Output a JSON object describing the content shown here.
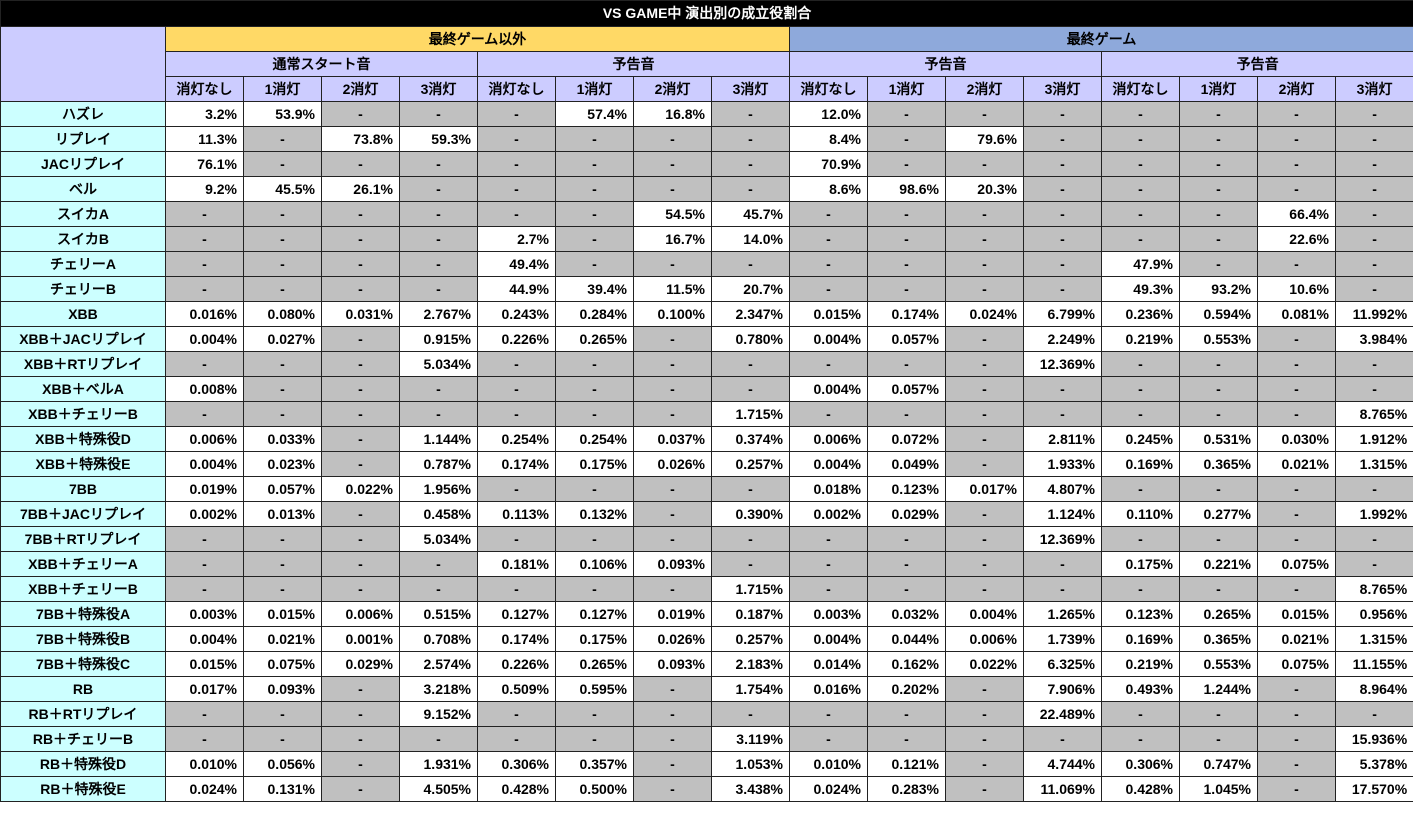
{
  "title": "VS GAME中 演出別の成立役割合",
  "colors": {
    "title_bg": "#000000",
    "title_fg": "#ffffff",
    "group_a_bg": "#ffd966",
    "group_b_bg": "#8ea9db",
    "subheader_bg": "#ccccff",
    "rowlabel_bg": "#ccffff",
    "white_cell": "#ffffff",
    "gray_cell": "#c0c0c0"
  },
  "groups": [
    {
      "label": "最終ゲーム以外",
      "color": "#ffd966"
    },
    {
      "label": "最終ゲーム",
      "color": "#8ea9db"
    }
  ],
  "subgroups": [
    "通常スタート音",
    "予告音",
    "予告音",
    "予告音"
  ],
  "columns": [
    "消灯なし",
    "1消灯",
    "2消灯",
    "3消灯",
    "消灯なし",
    "1消灯",
    "2消灯",
    "3消灯",
    "消灯なし",
    "1消灯",
    "2消灯",
    "3消灯",
    "消灯なし",
    "1消灯",
    "2消灯",
    "3消灯"
  ],
  "rows": [
    {
      "label": "ハズレ",
      "cells": [
        "3.2%",
        "53.9%",
        "-",
        "-",
        "-",
        "57.4%",
        "16.8%",
        "-",
        "12.0%",
        "-",
        "-",
        "-",
        "-",
        "-",
        "-",
        "-"
      ]
    },
    {
      "label": "リプレイ",
      "cells": [
        "11.3%",
        "-",
        "73.8%",
        "59.3%",
        "-",
        "-",
        "-",
        "-",
        "8.4%",
        "-",
        "79.6%",
        "-",
        "-",
        "-",
        "-",
        "-"
      ]
    },
    {
      "label": "JACリプレイ",
      "cells": [
        "76.1%",
        "-",
        "-",
        "-",
        "-",
        "-",
        "-",
        "-",
        "70.9%",
        "-",
        "-",
        "-",
        "-",
        "-",
        "-",
        "-"
      ]
    },
    {
      "label": "ベル",
      "cells": [
        "9.2%",
        "45.5%",
        "26.1%",
        "-",
        "-",
        "-",
        "-",
        "-",
        "8.6%",
        "98.6%",
        "20.3%",
        "-",
        "-",
        "-",
        "-",
        "-"
      ]
    },
    {
      "label": "スイカA",
      "cells": [
        "-",
        "-",
        "-",
        "-",
        "-",
        "-",
        "54.5%",
        "45.7%",
        "-",
        "-",
        "-",
        "-",
        "-",
        "-",
        "66.4%",
        "-"
      ]
    },
    {
      "label": "スイカB",
      "cells": [
        "-",
        "-",
        "-",
        "-",
        "2.7%",
        "-",
        "16.7%",
        "14.0%",
        "-",
        "-",
        "-",
        "-",
        "-",
        "-",
        "22.6%",
        "-"
      ]
    },
    {
      "label": "チェリーA",
      "cells": [
        "-",
        "-",
        "-",
        "-",
        "49.4%",
        "-",
        "-",
        "-",
        "-",
        "-",
        "-",
        "-",
        "47.9%",
        "-",
        "-",
        "-"
      ]
    },
    {
      "label": "チェリーB",
      "cells": [
        "-",
        "-",
        "-",
        "-",
        "44.9%",
        "39.4%",
        "11.5%",
        "20.7%",
        "-",
        "-",
        "-",
        "-",
        "49.3%",
        "93.2%",
        "10.6%",
        "-"
      ]
    },
    {
      "label": "XBB",
      "cells": [
        "0.016%",
        "0.080%",
        "0.031%",
        "2.767%",
        "0.243%",
        "0.284%",
        "0.100%",
        "2.347%",
        "0.015%",
        "0.174%",
        "0.024%",
        "6.799%",
        "0.236%",
        "0.594%",
        "0.081%",
        "11.992%"
      ]
    },
    {
      "label": "XBB＋JACリプレイ",
      "cells": [
        "0.004%",
        "0.027%",
        "-",
        "0.915%",
        "0.226%",
        "0.265%",
        "-",
        "0.780%",
        "0.004%",
        "0.057%",
        "-",
        "2.249%",
        "0.219%",
        "0.553%",
        "-",
        "3.984%"
      ]
    },
    {
      "label": "XBB＋RTリプレイ",
      "cells": [
        "-",
        "-",
        "-",
        "5.034%",
        "-",
        "-",
        "-",
        "-",
        "-",
        "-",
        "-",
        "12.369%",
        "-",
        "-",
        "-",
        "-"
      ]
    },
    {
      "label": "XBB＋ベルA",
      "cells": [
        "0.008%",
        "-",
        "-",
        "-",
        "-",
        "-",
        "-",
        "-",
        "0.004%",
        "0.057%",
        "-",
        "-",
        "-",
        "-",
        "-",
        "-"
      ]
    },
    {
      "label": "XBB＋チェリーB",
      "cells": [
        "-",
        "-",
        "-",
        "-",
        "-",
        "-",
        "-",
        "1.715%",
        "-",
        "-",
        "-",
        "-",
        "-",
        "-",
        "-",
        "8.765%"
      ]
    },
    {
      "label": "XBB＋特殊役D",
      "cells": [
        "0.006%",
        "0.033%",
        "-",
        "1.144%",
        "0.254%",
        "0.254%",
        "0.037%",
        "0.374%",
        "0.006%",
        "0.072%",
        "-",
        "2.811%",
        "0.245%",
        "0.531%",
        "0.030%",
        "1.912%"
      ]
    },
    {
      "label": "XBB＋特殊役E",
      "cells": [
        "0.004%",
        "0.023%",
        "-",
        "0.787%",
        "0.174%",
        "0.175%",
        "0.026%",
        "0.257%",
        "0.004%",
        "0.049%",
        "-",
        "1.933%",
        "0.169%",
        "0.365%",
        "0.021%",
        "1.315%"
      ]
    },
    {
      "label": "7BB",
      "cells": [
        "0.019%",
        "0.057%",
        "0.022%",
        "1.956%",
        "-",
        "-",
        "-",
        "-",
        "0.018%",
        "0.123%",
        "0.017%",
        "4.807%",
        "-",
        "-",
        "-",
        "-"
      ]
    },
    {
      "label": "7BB＋JACリプレイ",
      "cells": [
        "0.002%",
        "0.013%",
        "-",
        "0.458%",
        "0.113%",
        "0.132%",
        "-",
        "0.390%",
        "0.002%",
        "0.029%",
        "-",
        "1.124%",
        "0.110%",
        "0.277%",
        "-",
        "1.992%"
      ]
    },
    {
      "label": "7BB＋RTリプレイ",
      "cells": [
        "-",
        "-",
        "-",
        "5.034%",
        "-",
        "-",
        "-",
        "-",
        "-",
        "-",
        "-",
        "12.369%",
        "-",
        "-",
        "-",
        "-"
      ]
    },
    {
      "label": "XBB＋チェリーA",
      "cells": [
        "-",
        "-",
        "-",
        "-",
        "0.181%",
        "0.106%",
        "0.093%",
        "-",
        "-",
        "-",
        "-",
        "-",
        "0.175%",
        "0.221%",
        "0.075%",
        "-"
      ]
    },
    {
      "label": "XBB＋チェリーB",
      "cells": [
        "-",
        "-",
        "-",
        "-",
        "-",
        "-",
        "-",
        "1.715%",
        "-",
        "-",
        "-",
        "-",
        "-",
        "-",
        "-",
        "8.765%"
      ]
    },
    {
      "label": "7BB＋特殊役A",
      "cells": [
        "0.003%",
        "0.015%",
        "0.006%",
        "0.515%",
        "0.127%",
        "0.127%",
        "0.019%",
        "0.187%",
        "0.003%",
        "0.032%",
        "0.004%",
        "1.265%",
        "0.123%",
        "0.265%",
        "0.015%",
        "0.956%"
      ]
    },
    {
      "label": "7BB＋特殊役B",
      "cells": [
        "0.004%",
        "0.021%",
        "0.001%",
        "0.708%",
        "0.174%",
        "0.175%",
        "0.026%",
        "0.257%",
        "0.004%",
        "0.044%",
        "0.006%",
        "1.739%",
        "0.169%",
        "0.365%",
        "0.021%",
        "1.315%"
      ]
    },
    {
      "label": "7BB＋特殊役C",
      "cells": [
        "0.015%",
        "0.075%",
        "0.029%",
        "2.574%",
        "0.226%",
        "0.265%",
        "0.093%",
        "2.183%",
        "0.014%",
        "0.162%",
        "0.022%",
        "6.325%",
        "0.219%",
        "0.553%",
        "0.075%",
        "11.155%"
      ]
    },
    {
      "label": "RB",
      "cells": [
        "0.017%",
        "0.093%",
        "-",
        "3.218%",
        "0.509%",
        "0.595%",
        "-",
        "1.754%",
        "0.016%",
        "0.202%",
        "-",
        "7.906%",
        "0.493%",
        "1.244%",
        "-",
        "8.964%"
      ]
    },
    {
      "label": "RB＋RTリプレイ",
      "cells": [
        "-",
        "-",
        "-",
        "9.152%",
        "-",
        "-",
        "-",
        "-",
        "-",
        "-",
        "-",
        "22.489%",
        "-",
        "-",
        "-",
        "-"
      ]
    },
    {
      "label": "RB＋チェリーB",
      "cells": [
        "-",
        "-",
        "-",
        "-",
        "-",
        "-",
        "-",
        "3.119%",
        "-",
        "-",
        "-",
        "-",
        "-",
        "-",
        "-",
        "15.936%"
      ]
    },
    {
      "label": "RB＋特殊役D",
      "cells": [
        "0.010%",
        "0.056%",
        "-",
        "1.931%",
        "0.306%",
        "0.357%",
        "-",
        "1.053%",
        "0.010%",
        "0.121%",
        "-",
        "4.744%",
        "0.306%",
        "0.747%",
        "-",
        "5.378%"
      ]
    },
    {
      "label": "RB＋特殊役E",
      "cells": [
        "0.024%",
        "0.131%",
        "-",
        "4.505%",
        "0.428%",
        "0.500%",
        "-",
        "3.438%",
        "0.024%",
        "0.283%",
        "-",
        "11.069%",
        "0.428%",
        "1.045%",
        "-",
        "17.570%"
      ]
    }
  ]
}
